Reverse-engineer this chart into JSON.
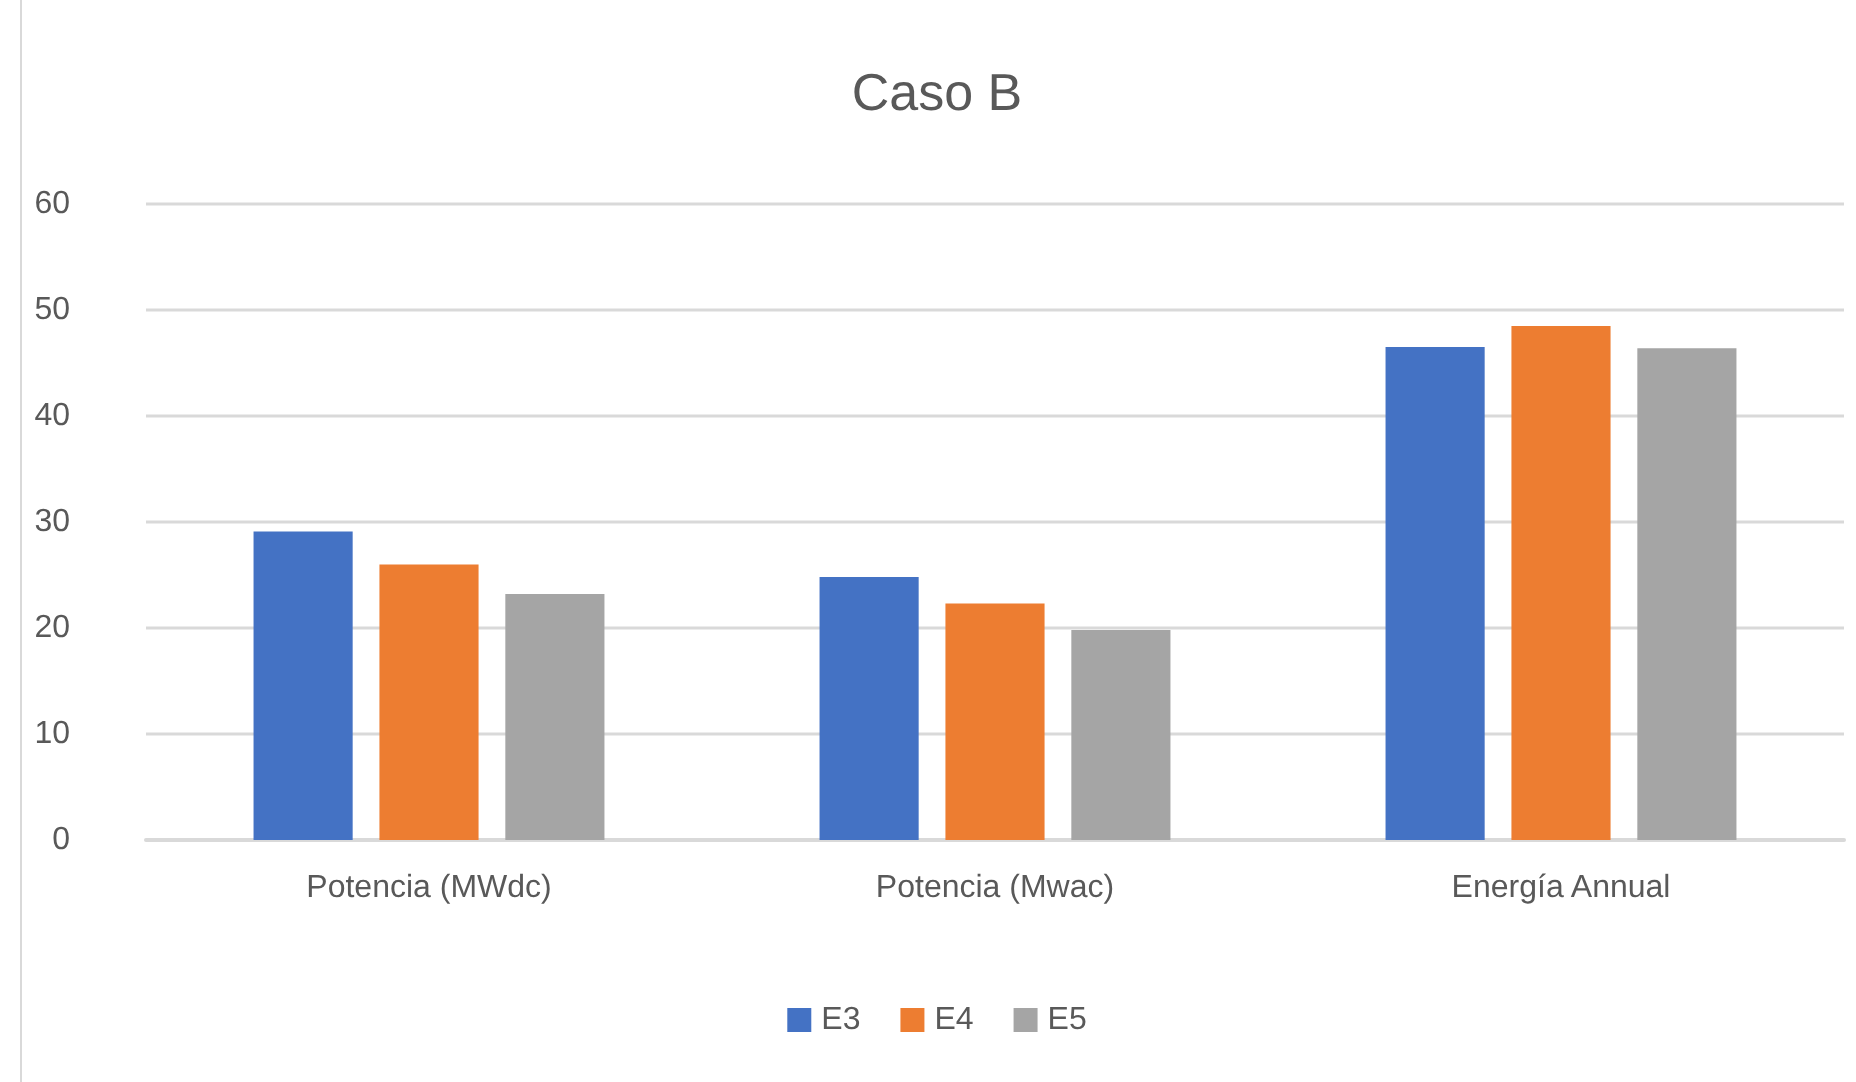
{
  "chart_data": {
    "type": "bar",
    "title": "Caso B",
    "categories": [
      "Potencia (MWdc)",
      "Potencia (Mwac)",
      "Energía Annual"
    ],
    "series": [
      {
        "name": "E3",
        "color": "#4472c4",
        "values": [
          29.1,
          24.8,
          46.5
        ]
      },
      {
        "name": "E4",
        "color": "#ed7d31",
        "values": [
          26.0,
          22.3,
          48.5
        ]
      },
      {
        "name": "E5",
        "color": "#a5a5a5",
        "values": [
          23.2,
          19.8,
          46.4
        ]
      }
    ],
    "ylim": [
      0,
      60
    ],
    "yticks": [
      0,
      10,
      20,
      30,
      40,
      50,
      60
    ],
    "grid": "y",
    "legend": "bottom"
  }
}
